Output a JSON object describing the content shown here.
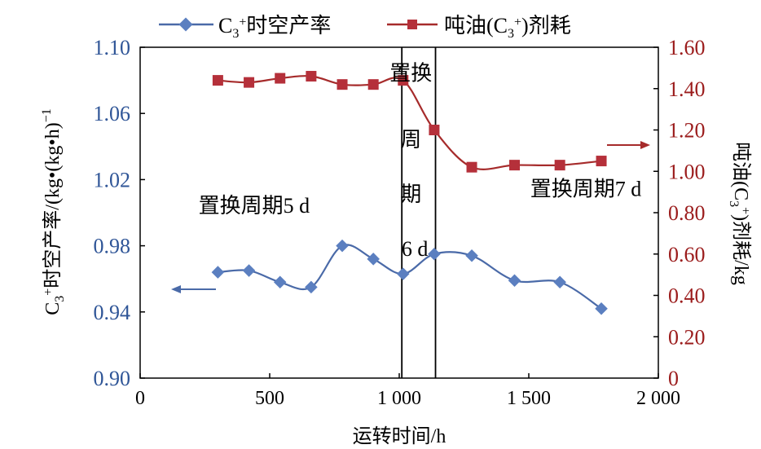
{
  "colors": {
    "left_series": "#4a6aa8",
    "left_marker": "#5b7fc0",
    "right_series": "#a62b2b",
    "right_marker": "#b5303a",
    "left_axis": "#2f5597",
    "right_axis": "#9b1c1c",
    "frame": "#000000"
  },
  "legend": {
    "left_marker_icon": "diamond-icon",
    "right_marker_icon": "square-icon"
  },
  "chart_data": {
    "type": "line",
    "x": {
      "label": "运转时间/h",
      "range": [
        0,
        2000
      ],
      "ticks": [
        "0",
        "500",
        "1 000",
        "1 500",
        "2 000"
      ],
      "tick_values": [
        0,
        500,
        1000,
        1500,
        2000
      ]
    },
    "y_left": {
      "label": "C3+时空产率/(kg•(kg•h)−1",
      "range": [
        0.9,
        1.1
      ],
      "ticks": [
        "0.90",
        "0.94",
        "0.98",
        "1.02",
        "1.06",
        "1.10"
      ],
      "tick_values": [
        0.9,
        0.94,
        0.98,
        1.02,
        1.06,
        1.1
      ]
    },
    "y_right": {
      "label": "吨油(C3+)剂耗/kg",
      "range": [
        0,
        1.6
      ],
      "ticks": [
        "0",
        "0.20",
        "0.40",
        "0.60",
        "0.80",
        "1.00",
        "1.20",
        "1.40",
        "1.60"
      ],
      "tick_values": [
        0,
        0.2,
        0.4,
        0.6,
        0.8,
        1.0,
        1.2,
        1.4,
        1.6
      ]
    },
    "grid": false,
    "legend_position": "top",
    "series": [
      {
        "name": "C3+时空产率",
        "axis": "left",
        "marker": "diamond",
        "x": [
          300,
          420,
          540,
          660,
          780,
          900,
          1015,
          1135,
          1280,
          1445,
          1620,
          1780
        ],
        "y": [
          0.964,
          0.965,
          0.958,
          0.955,
          0.98,
          0.972,
          0.963,
          0.975,
          0.974,
          0.959,
          0.958,
          0.942
        ]
      },
      {
        "name": "吨油(C3+)剂耗",
        "axis": "right",
        "marker": "square",
        "x": [
          300,
          420,
          540,
          660,
          780,
          900,
          1015,
          1135,
          1280,
          1445,
          1620,
          1780
        ],
        "y": [
          1.44,
          1.43,
          1.45,
          1.46,
          1.42,
          1.42,
          1.44,
          1.2,
          1.02,
          1.03,
          1.03,
          1.05
        ]
      }
    ],
    "vlines": [
      1010,
      1140
    ],
    "annotations": [
      {
        "text": "置换周期5 d",
        "x": 440,
        "y_left": 1.0
      },
      {
        "text": "置换",
        "x": 1045,
        "y_left": 1.08
      },
      {
        "text": "周",
        "x": 1045,
        "y_left": 1.04
      },
      {
        "text": "期",
        "x": 1045,
        "y_left": 1.007
      },
      {
        "text": "6 d",
        "x": 1060,
        "y_left": 0.974
      },
      {
        "text": "置换周期7 d",
        "x": 1720,
        "y_left": 1.01
      }
    ]
  }
}
